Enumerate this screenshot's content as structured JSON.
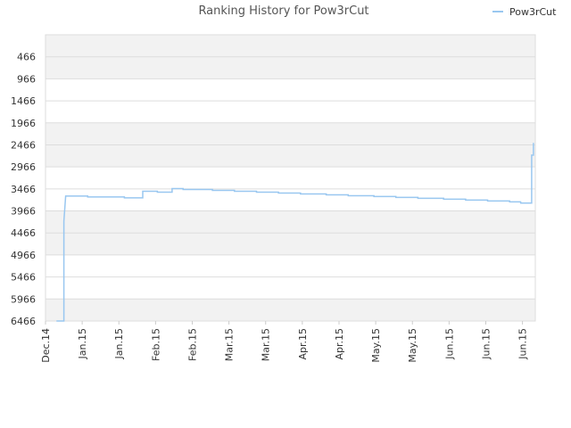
{
  "chart_data": {
    "type": "line",
    "title": "Ranking History for Pow3rCut",
    "xlabel": "",
    "ylabel": "",
    "y_inverted": true,
    "ylim": [
      6466,
      -34
    ],
    "y_ticks": [
      "466",
      "966",
      "1466",
      "1966",
      "2466",
      "2966",
      "3466",
      "3966",
      "4466",
      "4966",
      "5466",
      "5966",
      "6466"
    ],
    "x_ticks": [
      "Dec.14",
      "Jan.15",
      "Jan.15",
      "Feb.15",
      "Feb.15",
      "Mar.15",
      "Mar.15",
      "Apr.15",
      "Apr.15",
      "May.15",
      "May.15",
      "Jun.15",
      "Jun.15",
      "Jun.15"
    ],
    "x_index_range": [
      0,
      13.35
    ],
    "grid": true,
    "legend": {
      "position": "top-right",
      "entries": [
        "Pow3rCut"
      ]
    },
    "colors": {
      "series": "#99c7f0",
      "band_dark": "#f2f2f2",
      "band_light": "#ffffff",
      "grid": "#dddddd"
    },
    "series": [
      {
        "name": "Pow3rCut",
        "step": true,
        "points": [
          [
            0.3,
            6466
          ],
          [
            0.5,
            6466
          ],
          [
            0.5,
            4200
          ],
          [
            0.55,
            3630
          ],
          [
            1.15,
            3630
          ],
          [
            1.15,
            3650
          ],
          [
            2.15,
            3650
          ],
          [
            2.15,
            3670
          ],
          [
            2.65,
            3670
          ],
          [
            2.65,
            3520
          ],
          [
            3.05,
            3520
          ],
          [
            3.05,
            3540
          ],
          [
            3.45,
            3540
          ],
          [
            3.45,
            3460
          ],
          [
            3.75,
            3460
          ],
          [
            3.75,
            3480
          ],
          [
            4.55,
            3480
          ],
          [
            4.55,
            3500
          ],
          [
            5.15,
            3500
          ],
          [
            5.15,
            3520
          ],
          [
            5.75,
            3520
          ],
          [
            5.75,
            3540
          ],
          [
            6.35,
            3540
          ],
          [
            6.35,
            3560
          ],
          [
            6.95,
            3560
          ],
          [
            6.95,
            3580
          ],
          [
            7.65,
            3580
          ],
          [
            7.65,
            3600
          ],
          [
            8.25,
            3600
          ],
          [
            8.25,
            3620
          ],
          [
            8.95,
            3620
          ],
          [
            8.95,
            3640
          ],
          [
            9.55,
            3640
          ],
          [
            9.55,
            3660
          ],
          [
            10.15,
            3660
          ],
          [
            10.15,
            3680
          ],
          [
            10.85,
            3680
          ],
          [
            10.85,
            3700
          ],
          [
            11.45,
            3700
          ],
          [
            11.45,
            3720
          ],
          [
            12.05,
            3720
          ],
          [
            12.05,
            3740
          ],
          [
            12.65,
            3740
          ],
          [
            12.65,
            3760
          ],
          [
            12.95,
            3760
          ],
          [
            12.95,
            3790
          ],
          [
            13.25,
            3790
          ],
          [
            13.25,
            2700
          ],
          [
            13.3,
            2700
          ],
          [
            13.3,
            2420
          ]
        ]
      }
    ]
  }
}
